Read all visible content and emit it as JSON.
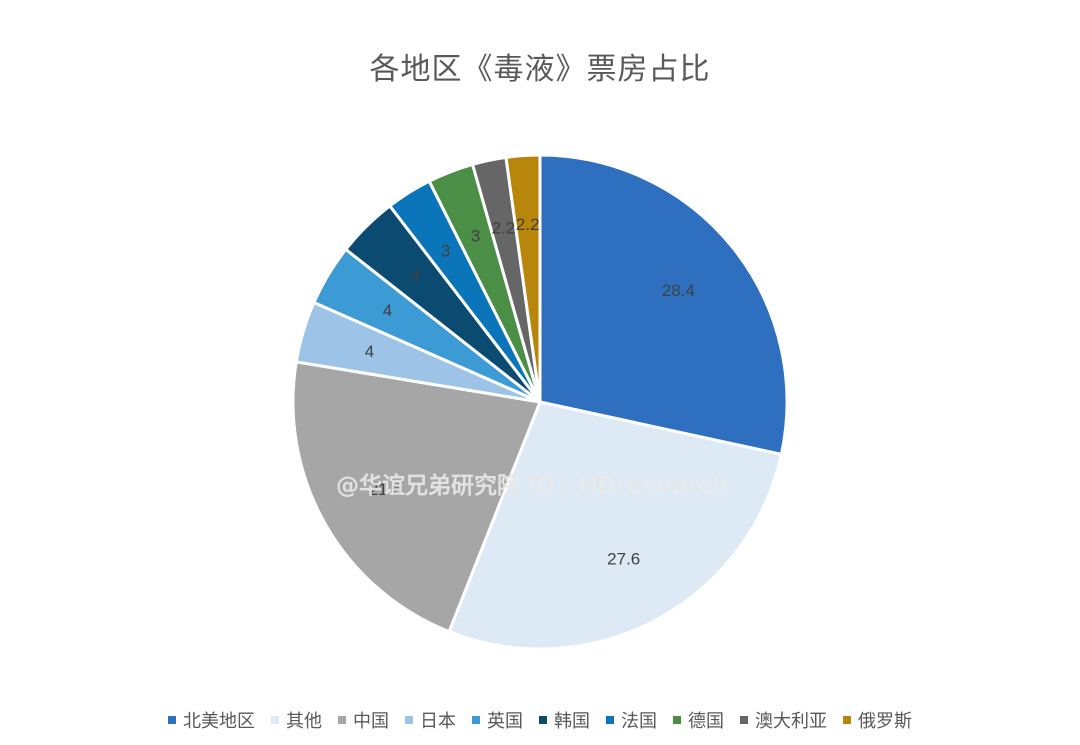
{
  "chart_data": {
    "type": "pie",
    "title": "各地区《毒液》票房占比",
    "start_angle_deg": 0,
    "direction": "clockwise",
    "legend_position": "bottom",
    "slices": [
      {
        "label": "北美地区",
        "value": 28.4,
        "color": "#2e70bf",
        "label_color": "#404040"
      },
      {
        "label": "其他",
        "value": 27.6,
        "color": "#ddeaf6",
        "label_color": "#404040"
      },
      {
        "label": "中国",
        "value": 21.6,
        "color": "#a6a6a6",
        "label_color": "#404040"
      },
      {
        "label": "日本",
        "value": 4,
        "color": "#9dc3e6",
        "label_color": "#404040"
      },
      {
        "label": "英国",
        "value": 4,
        "color": "#3c9ad5",
        "label_color": "#404040"
      },
      {
        "label": "韩国",
        "value": 4,
        "color": "#0b4b72",
        "label_color": "#404040"
      },
      {
        "label": "法国",
        "value": 3,
        "color": "#0b75b9",
        "label_color": "#404040"
      },
      {
        "label": "德国",
        "value": 3,
        "color": "#4a8f45",
        "label_color": "#404040"
      },
      {
        "label": "澳大利亚",
        "value": 2.2,
        "color": "#666666",
        "label_color": "#404040"
      },
      {
        "label": "俄罗斯",
        "value": 2.2,
        "color": "#b8860b",
        "label_color": "#404040"
      }
    ]
  },
  "watermark": "@华谊兄弟研究院 ID：HBresearch"
}
